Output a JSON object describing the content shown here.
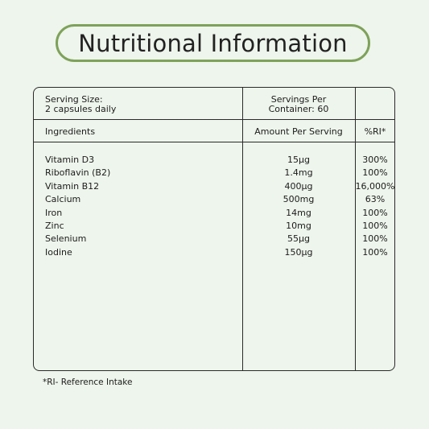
{
  "title": "Nutritional Information",
  "header": {
    "serving_size_line1": "Serving Size:",
    "serving_size_line2": "2 capsules daily",
    "servings_per_line1": "Servings Per",
    "servings_per_line2": "Container: 60"
  },
  "columns": {
    "ingredients": "Ingredients",
    "amount": "Amount Per Serving",
    "ri": "%RI*"
  },
  "rows": [
    {
      "ingredient": "Vitamin D3",
      "amount": "15µg",
      "ri": "300%"
    },
    {
      "ingredient": "Riboflavin (B2)",
      "amount": "1.4mg",
      "ri": "100%"
    },
    {
      "ingredient": "Vitamin B12",
      "amount": "400µg",
      "ri": "16,000%"
    },
    {
      "ingredient": "Calcium",
      "amount": "500mg",
      "ri": "63%"
    },
    {
      "ingredient": "Iron",
      "amount": "14mg",
      "ri": "100%"
    },
    {
      "ingredient": "Zinc",
      "amount": "10mg",
      "ri": "100%"
    },
    {
      "ingredient": "Selenium",
      "amount": "55µg",
      "ri": "100%"
    },
    {
      "ingredient": "Iodine",
      "amount": "150µg",
      "ri": "100%"
    }
  ],
  "footnote": "*RI- Reference Intake",
  "colors": {
    "background": "#eef5ec",
    "accent": "#7ea25a",
    "border": "#2a2a2a"
  }
}
